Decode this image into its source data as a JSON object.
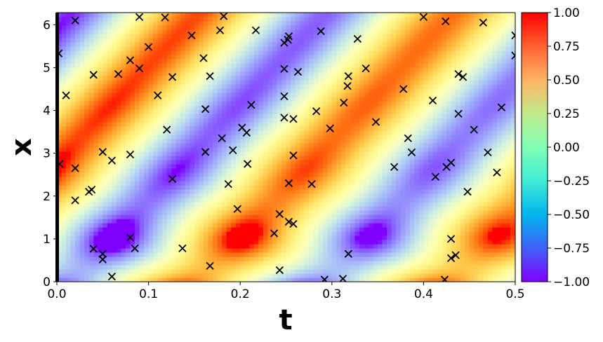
{
  "chart_data": {
    "type": "heatmap",
    "xlabel": "t",
    "ylabel": "x",
    "xlim": [
      0.0,
      0.5
    ],
    "ylim": [
      0.0,
      6.283
    ],
    "x_ticks": [
      "0.0",
      "0.1",
      "0.2",
      "0.3",
      "0.4",
      "0.5"
    ],
    "y_ticks": [
      "0",
      "1",
      "2",
      "3",
      "4",
      "5",
      "6"
    ],
    "colormap": "rainbow",
    "colorbar": {
      "range": [
        -1.0,
        1.0
      ],
      "ticks": [
        "1.00",
        "0.75",
        "0.50",
        "0.25",
        "0.00",
        "−0.25",
        "−0.50",
        "−0.75",
        "−1.00"
      ]
    },
    "marker": "x",
    "marker_color": "#000000",
    "points": [
      [
        0.002,
        5.33
      ],
      [
        0.01,
        4.35
      ],
      [
        0.003,
        2.75
      ],
      [
        0.02,
        6.1
      ],
      [
        0.02,
        2.65
      ],
      [
        0.02,
        1.9
      ],
      [
        0.035,
        2.1
      ],
      [
        0.038,
        2.15
      ],
      [
        0.04,
        4.83
      ],
      [
        0.04,
        0.77
      ],
      [
        0.05,
        0.65
      ],
      [
        0.05,
        0.52
      ],
      [
        0.05,
        3.03
      ],
      [
        0.06,
        2.83
      ],
      [
        0.06,
        0.12
      ],
      [
        0.067,
        4.85
      ],
      [
        0.08,
        5.17
      ],
      [
        0.08,
        2.97
      ],
      [
        0.08,
        1.03
      ],
      [
        0.085,
        0.78
      ],
      [
        0.09,
        6.18
      ],
      [
        0.09,
        4.98
      ],
      [
        0.1,
        5.48
      ],
      [
        0.11,
        4.35
      ],
      [
        0.118,
        6.17
      ],
      [
        0.12,
        3.55
      ],
      [
        0.126,
        4.78
      ],
      [
        0.126,
        2.4
      ],
      [
        0.137,
        0.78
      ],
      [
        0.147,
        5.75
      ],
      [
        0.16,
        5.22
      ],
      [
        0.162,
        4.03
      ],
      [
        0.162,
        3.03
      ],
      [
        0.167,
        4.8
      ],
      [
        0.167,
        0.37
      ],
      [
        0.178,
        5.87
      ],
      [
        0.18,
        3.35
      ],
      [
        0.182,
        6.2
      ],
      [
        0.187,
        2.28
      ],
      [
        0.192,
        3.07
      ],
      [
        0.197,
        1.7
      ],
      [
        0.202,
        3.6
      ],
      [
        0.207,
        3.48
      ],
      [
        0.208,
        2.75
      ],
      [
        0.212,
        4.13
      ],
      [
        0.217,
        5.87
      ],
      [
        0.237,
        1.13
      ],
      [
        0.243,
        0.27
      ],
      [
        0.243,
        1.58
      ],
      [
        0.248,
        5.58
      ],
      [
        0.248,
        4.97
      ],
      [
        0.248,
        4.33
      ],
      [
        0.248,
        3.83
      ],
      [
        0.252,
        5.65
      ],
      [
        0.253,
        5.73
      ],
      [
        0.253,
        2.3
      ],
      [
        0.253,
        1.4
      ],
      [
        0.258,
        1.35
      ],
      [
        0.258,
        2.95
      ],
      [
        0.258,
        3.8
      ],
      [
        0.263,
        4.9
      ],
      [
        0.278,
        2.28
      ],
      [
        0.283,
        3.98
      ],
      [
        0.288,
        5.85
      ],
      [
        0.292,
        0.05
      ],
      [
        0.298,
        3.58
      ],
      [
        0.312,
        0.07
      ],
      [
        0.313,
        4.18
      ],
      [
        0.317,
        4.57
      ],
      [
        0.318,
        4.8
      ],
      [
        0.318,
        0.65
      ],
      [
        0.328,
        5.67
      ],
      [
        0.337,
        4.98
      ],
      [
        0.348,
        3.73
      ],
      [
        0.368,
        2.68
      ],
      [
        0.378,
        4.5
      ],
      [
        0.383,
        3.35
      ],
      [
        0.387,
        3.02
      ],
      [
        0.4,
        6.18
      ],
      [
        0.41,
        4.23
      ],
      [
        0.413,
        2.45
      ],
      [
        0.423,
        0.05
      ],
      [
        0.424,
        6.08
      ],
      [
        0.425,
        2.68
      ],
      [
        0.43,
        2.78
      ],
      [
        0.43,
        1.0
      ],
      [
        0.43,
        0.55
      ],
      [
        0.435,
        0.62
      ],
      [
        0.438,
        4.85
      ],
      [
        0.438,
        3.92
      ],
      [
        0.443,
        4.78
      ],
      [
        0.448,
        2.1
      ],
      [
        0.455,
        3.55
      ],
      [
        0.465,
        6.05
      ],
      [
        0.47,
        3.02
      ],
      [
        0.48,
        2.55
      ],
      [
        0.485,
        4.07
      ],
      [
        0.5,
        5.75
      ],
      [
        0.5,
        5.28
      ]
    ]
  }
}
